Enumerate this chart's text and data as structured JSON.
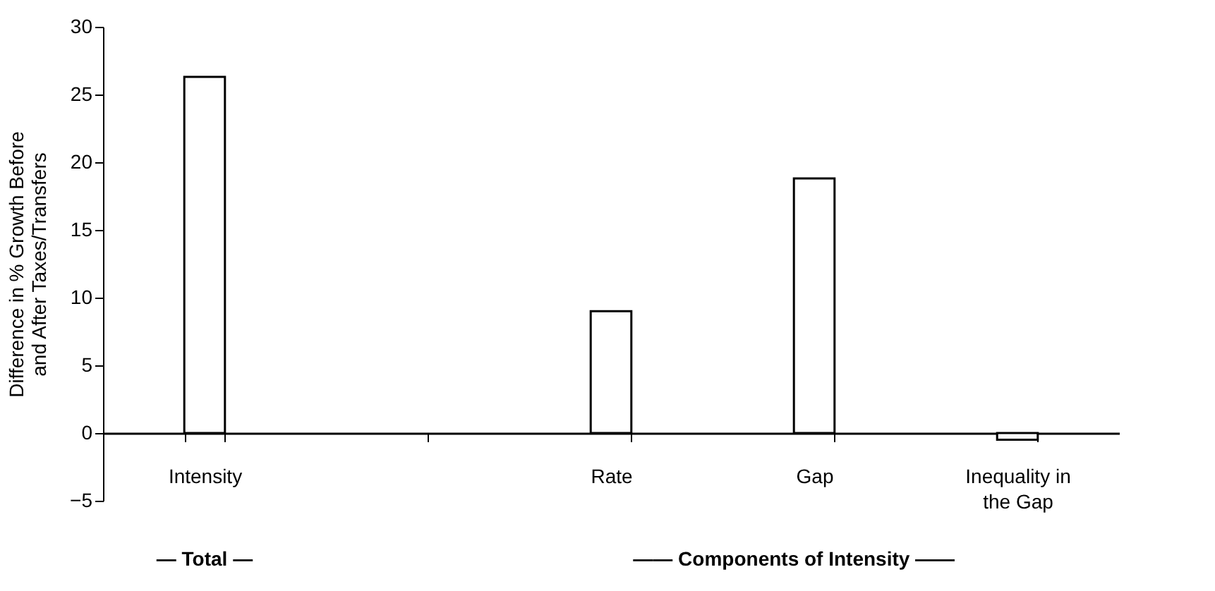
{
  "chart_data": {
    "type": "bar",
    "ylabel": "Difference in % Growth Before and After Taxes/Transfers",
    "categories": [
      "Intensity",
      null,
      "Rate",
      "Gap",
      "Inequality in the Gap"
    ],
    "values": [
      26.3,
      null,
      9.0,
      18.8,
      -0.5
    ],
    "color": "#ffffff",
    "ylim": [
      -5,
      30
    ],
    "yticks": [
      -5,
      0,
      5,
      10,
      15,
      20,
      25,
      30
    ],
    "grid": false,
    "annotations": [
      "— Total —",
      "—— Components of Intensity ——"
    ]
  }
}
